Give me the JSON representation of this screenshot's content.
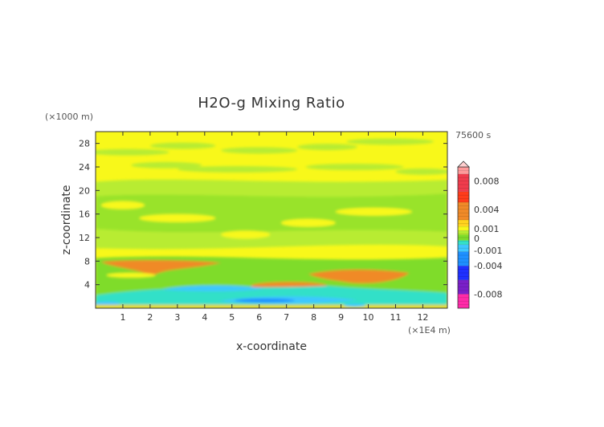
{
  "chart_data": {
    "type": "heatmap",
    "title": "H2O-g Mixing Ratio",
    "xlabel": "x-coordinate",
    "ylabel": "z-coordinate",
    "x_unit": "(×1E4 m)",
    "y_unit": "(×1000 m)",
    "time_label": "75600 s",
    "xlim": [
      0,
      12.9
    ],
    "ylim": [
      0,
      30
    ],
    "x_ticks": [
      "1",
      "2",
      "3",
      "4",
      "5",
      "6",
      "7",
      "8",
      "9",
      "10",
      "11",
      "12"
    ],
    "y_ticks": [
      "4",
      "8",
      "12",
      "16",
      "20",
      "24",
      "28"
    ],
    "x_tick_values": [
      1,
      2,
      3,
      4,
      5,
      6,
      7,
      8,
      9,
      10,
      11,
      12
    ],
    "y_tick_values": [
      4,
      8,
      12,
      16,
      20,
      24,
      28
    ],
    "colorbar": {
      "range": [
        -0.01,
        0.01
      ],
      "labels": [
        "0.008",
        "0.004",
        "0.001",
        "0",
        "-0.001",
        "-0.004",
        "-0.008"
      ],
      "label_values": [
        0.008,
        0.004,
        0.001,
        0,
        -0.001,
        -0.004,
        -0.008
      ],
      "colors": {
        "neg_strong": "#ff2aa8",
        "neg_purple": "#7a1fc9",
        "neg_blue": "#2030ff",
        "neg_mid": "#1e90ff",
        "neg_light": "#3ec8ff",
        "neg_cyan": "#33e0c8",
        "zero_green": "#7fdc2a",
        "zero_lime": "#b8ec30",
        "pos_yellow": "#f8f81a",
        "pos_gold": "#ffd21e",
        "pos_orange": "#f08a28",
        "pos_red": "#ff3c1a",
        "pos_crimson": "#f03c4c",
        "pos_pink": "#ff9a9a"
      }
    },
    "regions": [
      {
        "kind": "green",
        "x": [
          0,
          12.9
        ],
        "z": [
          10,
          22
        ]
      },
      {
        "kind": "yellow",
        "x": [
          0,
          12.9
        ],
        "z": [
          22,
          30
        ]
      },
      {
        "kind": "orange",
        "x": [
          0.2,
          4.5
        ],
        "z": [
          6.4,
          8.2
        ]
      },
      {
        "kind": "orange",
        "x": [
          8,
          11.5
        ],
        "z": [
          4,
          6.5
        ]
      },
      {
        "kind": "orange",
        "x": [
          5.8,
          8.5
        ],
        "z": [
          3.2,
          4.4
        ]
      },
      {
        "kind": "cyan",
        "x": [
          0.2,
          12.9
        ],
        "z": [
          0.5,
          3.8
        ]
      },
      {
        "kind": "blue",
        "x": [
          2.5,
          5.5
        ],
        "z": [
          2.8,
          4
        ]
      },
      {
        "kind": "blue",
        "x": [
          4.5,
          9
        ],
        "z": [
          0.6,
          2
        ]
      }
    ]
  }
}
